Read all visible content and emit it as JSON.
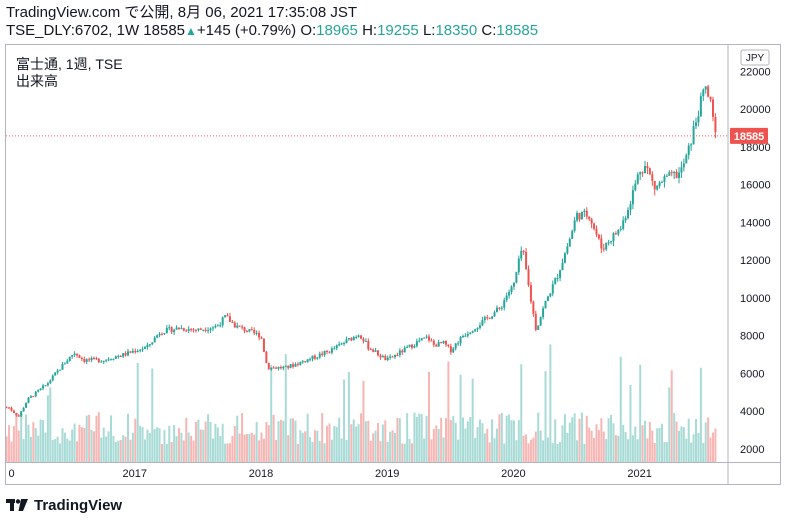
{
  "header": {
    "line1": "TradingView.com で公開, 8月 06, 2021 17:35:08 JST",
    "symbol": "TSE_DLY:6702, 1W",
    "last": "18585",
    "up_arrow": "▲",
    "change": "+145 (+0.79%)",
    "o_label": "O:",
    "o": "18965",
    "h_label": "H:",
    "h": "19255",
    "l_label": "L:",
    "l": "18350",
    "c_label": "C:",
    "c": "18585"
  },
  "legend": {
    "line1": "富士通, 1週, TSE",
    "line2": "出来高"
  },
  "footer": {
    "brand": "TradingView"
  },
  "colors": {
    "up": "#26a69a",
    "down": "#ef5350",
    "price_line": "#ef5350",
    "axis_text": "#131722",
    "border": "#b2b5be"
  },
  "chart_data": {
    "type": "candlestick",
    "currency_label": "JPY",
    "y_ticks": [
      2000,
      4000,
      6000,
      8000,
      10000,
      12000,
      14000,
      16000,
      18000,
      20000,
      22000
    ],
    "ylim": [
      1300,
      23400
    ],
    "x_labels": [
      {
        "label": "0",
        "t": 2016.0
      },
      {
        "label": "2017",
        "t": 2017.0
      },
      {
        "label": "2018",
        "t": 2018.0
      },
      {
        "label": "2019",
        "t": 2019.0
      },
      {
        "label": "2020",
        "t": 2020.0
      },
      {
        "label": "2021",
        "t": 2021.0
      }
    ],
    "xlim": [
      2015.98,
      2021.7
    ],
    "current_price": 18585,
    "price_path": [
      [
        2016.0,
        4200
      ],
      [
        2016.08,
        3700
      ],
      [
        2016.15,
        4600
      ],
      [
        2016.3,
        5400
      ],
      [
        2016.45,
        6600
      ],
      [
        2016.52,
        7100
      ],
      [
        2016.6,
        6700
      ],
      [
        2016.75,
        6700
      ],
      [
        2016.85,
        6900
      ],
      [
        2016.92,
        7000
      ],
      [
        2017.0,
        7200
      ],
      [
        2017.1,
        7400
      ],
      [
        2017.2,
        8200
      ],
      [
        2017.35,
        8400
      ],
      [
        2017.5,
        8300
      ],
      [
        2017.65,
        8500
      ],
      [
        2017.72,
        9000
      ],
      [
        2017.8,
        8500
      ],
      [
        2017.95,
        8100
      ],
      [
        2018.0,
        8000
      ],
      [
        2018.05,
        6300
      ],
      [
        2018.2,
        6300
      ],
      [
        2018.4,
        6800
      ],
      [
        2018.55,
        7200
      ],
      [
        2018.7,
        7800
      ],
      [
        2018.78,
        8100
      ],
      [
        2018.85,
        7400
      ],
      [
        2018.95,
        6900
      ],
      [
        2019.0,
        6700
      ],
      [
        2019.1,
        7100
      ],
      [
        2019.25,
        7700
      ],
      [
        2019.32,
        7900
      ],
      [
        2019.37,
        7500
      ],
      [
        2019.45,
        7600
      ],
      [
        2019.5,
        7200
      ],
      [
        2019.6,
        8000
      ],
      [
        2019.75,
        8700
      ],
      [
        2019.9,
        9500
      ],
      [
        2019.95,
        10200
      ],
      [
        2020.0,
        10600
      ],
      [
        2020.07,
        12700
      ],
      [
        2020.13,
        10200
      ],
      [
        2020.18,
        8300
      ],
      [
        2020.25,
        9700
      ],
      [
        2020.35,
        11200
      ],
      [
        2020.45,
        13200
      ],
      [
        2020.5,
        14400
      ],
      [
        2020.6,
        14400
      ],
      [
        2020.7,
        12600
      ],
      [
        2020.78,
        13200
      ],
      [
        2020.85,
        13700
      ],
      [
        2020.92,
        15000
      ],
      [
        2021.0,
        16800
      ],
      [
        2021.05,
        17000
      ],
      [
        2021.12,
        15800
      ],
      [
        2021.2,
        16300
      ],
      [
        2021.32,
        16600
      ],
      [
        2021.38,
        17600
      ],
      [
        2021.45,
        19500
      ],
      [
        2021.52,
        21200
      ],
      [
        2021.56,
        20300
      ],
      [
        2021.6,
        18600
      ]
    ],
    "volume_scale": "relative"
  }
}
